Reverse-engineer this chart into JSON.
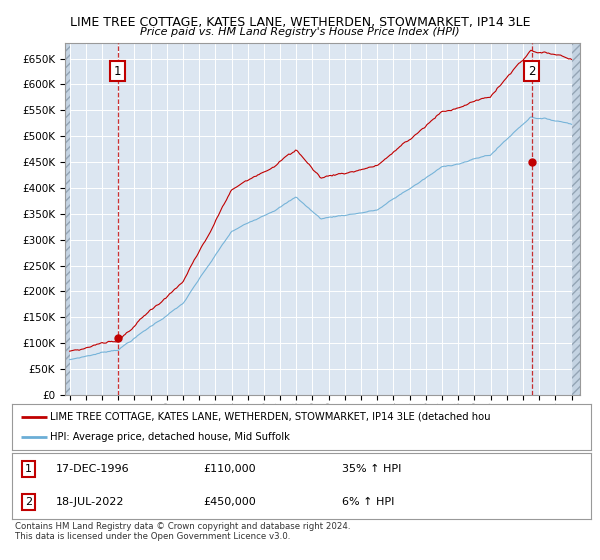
{
  "title1": "LIME TREE COTTAGE, KATES LANE, WETHERDEN, STOWMARKET, IP14 3LE",
  "title2": "Price paid vs. HM Land Registry's House Price Index (HPI)",
  "ylim": [
    0,
    680000
  ],
  "yticks": [
    0,
    50000,
    100000,
    150000,
    200000,
    250000,
    300000,
    350000,
    400000,
    450000,
    500000,
    550000,
    600000,
    650000
  ],
  "xlim_start": 1993.7,
  "xlim_end": 2025.5,
  "sale1_year": 1996.96,
  "sale1_price": 110000,
  "sale2_year": 2022.54,
  "sale2_price": 450000,
  "hpi_color": "#6baed6",
  "price_color": "#c00000",
  "annotation_box_color": "#c00000",
  "plot_bg_color": "#dce6f1",
  "hatch_color": "#bfcfdf",
  "legend_label1": "LIME TREE COTTAGE, KATES LANE, WETHERDEN, STOWMARKET, IP14 3LE (detached hou",
  "legend_label2": "HPI: Average price, detached house, Mid Suffolk",
  "ann1_date": "17-DEC-1996",
  "ann1_price": "£110,000",
  "ann1_hpi": "35% ↑ HPI",
  "ann2_date": "18-JUL-2022",
  "ann2_price": "£450,000",
  "ann2_hpi": "6% ↑ HPI",
  "footer": "Contains HM Land Registry data © Crown copyright and database right 2024.\nThis data is licensed under the Open Government Licence v3.0."
}
